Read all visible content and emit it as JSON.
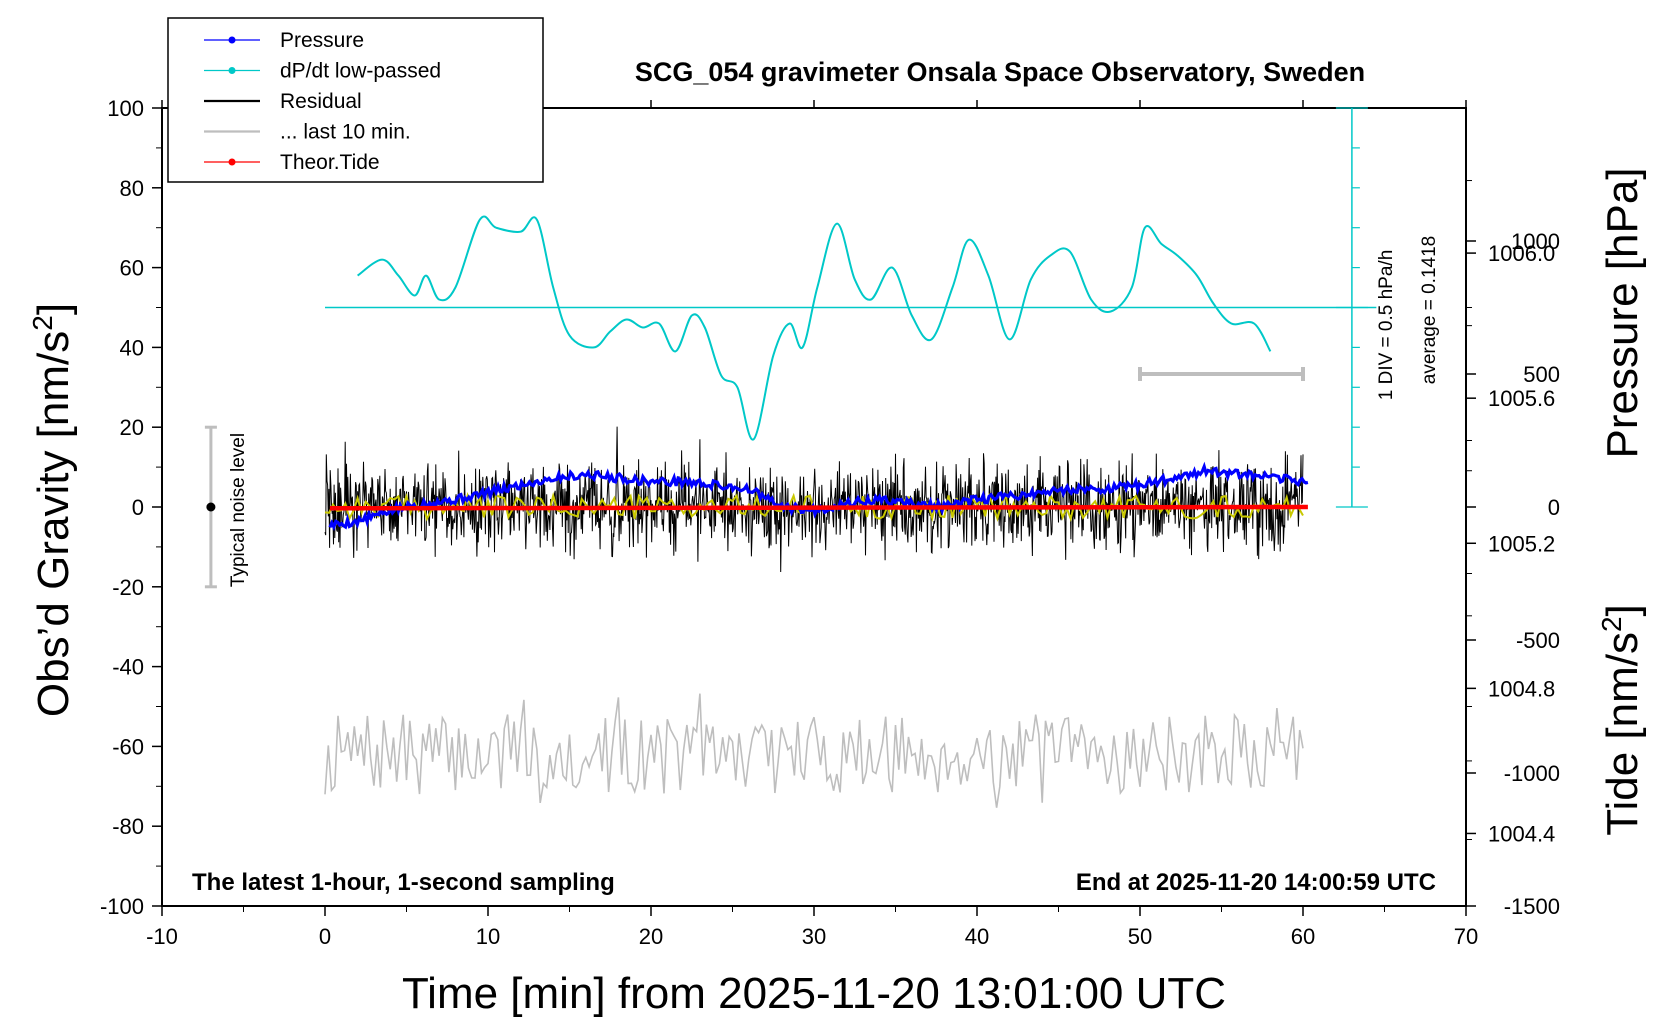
{
  "chart_data": {
    "type": "line",
    "title": "SCG_054 gravimeter Onsala Space Observatory, Sweden",
    "xlabel": "Time [min] from 2025-11-20 13:01:00 UTC",
    "ylabel_left": "Obs’d Gravity [nm/s",
    "ylabel_left_sup": "2",
    "ylabel_left_end": "]",
    "ylabel_right_pressure": "Pressure [hPa]",
    "ylabel_right_tide": "Tide [nm/s",
    "ylabel_right_tide_sup": "2",
    "ylabel_right_tide_end": "]",
    "footer_left": "The latest 1-hour, 1-second sampling",
    "footer_right": "End at 2025-11-20 14:00:59 UTC",
    "xlim": [
      -10,
      70
    ],
    "ylim": [
      -100,
      100
    ],
    "pressure_lim": [
      1004.2,
      1006.4
    ],
    "tide_lim": [
      -1500,
      1500
    ],
    "grid": false,
    "x_ticks": [
      "-10",
      "0",
      "10",
      "20",
      "30",
      "40",
      "50",
      "60",
      "70"
    ],
    "y_ticks": [
      "100",
      "80",
      "60",
      "40",
      "20",
      "0",
      "-20",
      "-40",
      "-60",
      "-80",
      "-100"
    ],
    "pressure_ticks": [
      "1006.0",
      "1005.6",
      "1005.2",
      "1004.8",
      "1004.4"
    ],
    "tide_ticks": [
      "1000",
      "500",
      "0",
      "-500",
      "-1000",
      "-1500"
    ],
    "legend": {
      "position": "top-left",
      "entries": [
        {
          "label": "Pressure",
          "color": "#0000ff",
          "marker": true
        },
        {
          "label": "dP/dt low-passed",
          "color": "#00c8c8",
          "marker": true
        },
        {
          "label": "Residual",
          "color": "#000000",
          "marker": false
        },
        {
          "label": "... last 10 min.",
          "color": "#bebebe",
          "marker": false
        },
        {
          "label": "Theor.Tide",
          "color": "#ff0000",
          "marker": true
        }
      ]
    },
    "dpdt_scale_label": "1 DIV = 0.5 hPa/h",
    "dpdt_average_label": "average = 0.1418",
    "noise_label": "Typical noise level",
    "noise_bar": {
      "x": -7,
      "y_low": -20,
      "y_high": 20
    },
    "last10_bar": {
      "x_start": 50,
      "x_end": 60,
      "tide": 500
    },
    "series": [
      {
        "name": "Pressure",
        "axis": "pressure",
        "color": "#0000ff",
        "x": [
          0.3,
          2,
          4,
          6,
          8,
          10,
          12,
          14,
          16,
          18,
          20,
          22,
          24,
          26,
          28,
          30,
          32,
          34,
          36,
          38,
          40,
          42,
          44,
          46,
          48,
          50,
          52,
          54,
          56,
          58,
          60.3
        ],
        "y": [
          1005.25,
          1005.26,
          1005.29,
          1005.31,
          1005.32,
          1005.34,
          1005.36,
          1005.38,
          1005.39,
          1005.38,
          1005.37,
          1005.37,
          1005.36,
          1005.35,
          1005.3,
          1005.29,
          1005.31,
          1005.32,
          1005.31,
          1005.3,
          1005.32,
          1005.33,
          1005.34,
          1005.35,
          1005.35,
          1005.36,
          1005.38,
          1005.4,
          1005.39,
          1005.38,
          1005.37
        ]
      },
      {
        "name": "dP/dt low-passed",
        "axis": "gravity",
        "color": "#00c8c8",
        "x": [
          2,
          3.5,
          4.5,
          5.5,
          6.2,
          7,
          8,
          9.5,
          10.5,
          12,
          13,
          14,
          15,
          16.5,
          17.5,
          18.5,
          19.5,
          20.5,
          21.5,
          22.5,
          23.3,
          24.3,
          25.3,
          26.3,
          27.5,
          28.5,
          29.3,
          30.2,
          31.4,
          32.5,
          33.5,
          34.8,
          36,
          37.2,
          38.5,
          39.5,
          40.7,
          42,
          43.3,
          44.5,
          45.7,
          47,
          48.2,
          49.5,
          50.3,
          51.3,
          52.3,
          53.5,
          54.5,
          55.6,
          57,
          58
        ],
        "y": [
          58,
          62,
          58,
          53,
          58,
          52,
          55,
          72,
          70,
          69,
          72,
          55,
          43,
          40,
          44,
          47,
          45,
          46,
          39,
          48,
          45,
          33,
          30,
          17,
          38,
          46,
          40,
          55,
          71,
          57,
          52,
          60,
          48,
          42,
          55,
          67,
          58,
          42,
          57,
          63,
          64,
          52,
          49,
          55,
          70,
          66,
          63,
          58,
          51,
          46,
          46,
          39
        ]
      },
      {
        "name": "Residual",
        "axis": "gravity",
        "color": "#000000",
        "x": [
          0,
          60
        ],
        "y": [
          0,
          0
        ],
        "amplitude": 12
      },
      {
        "name": "Residual low-passed",
        "axis": "gravity",
        "color": "#c8c800",
        "x": [
          0,
          60
        ],
        "y": [
          0,
          0
        ],
        "amplitude": 3
      },
      {
        "name": "Theor.Tide",
        "axis": "tide",
        "color": "#ff0000",
        "x": [
          0.3,
          60.3
        ],
        "y": [
          -5,
          0
        ]
      },
      {
        "name": "... last 10 min.",
        "axis": "gravity",
        "color": "#bebebe",
        "x": [
          0,
          60
        ],
        "y": [
          -62,
          -62
        ],
        "amplitude": 10
      }
    ]
  }
}
